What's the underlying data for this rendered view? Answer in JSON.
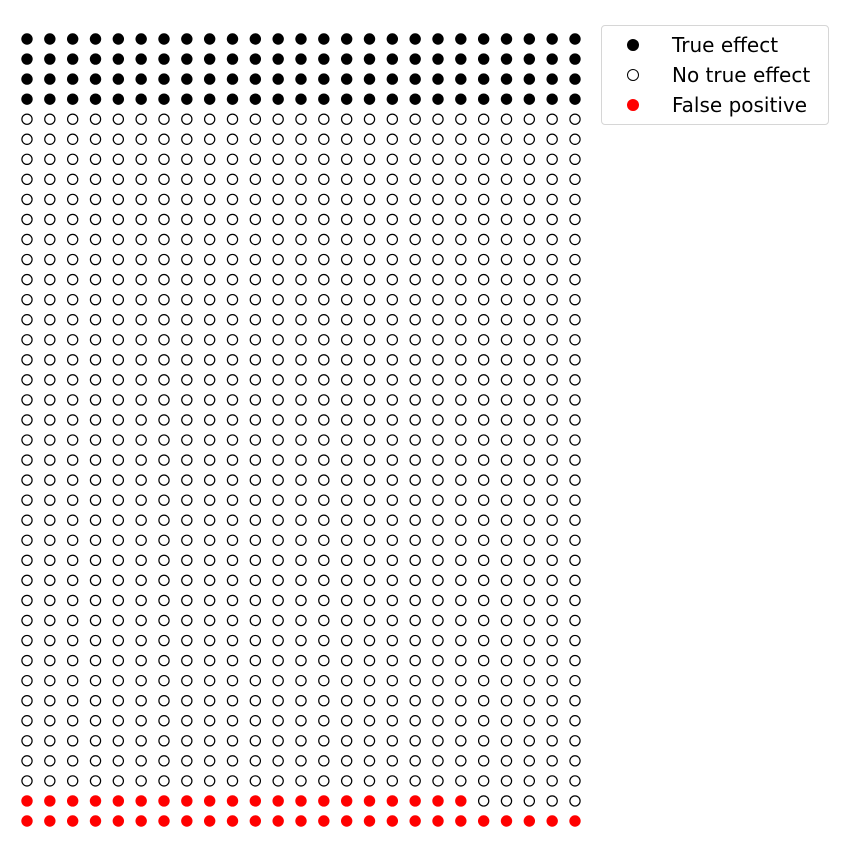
{
  "chart_data": {
    "type": "scatter",
    "subtype": "dot-grid",
    "columns": 25,
    "rows": 40,
    "total": 1000,
    "axes_visible": false,
    "grid": false,
    "legend_position": "top-right",
    "categories": [
      {
        "key": "true_effect",
        "name": "True effect",
        "color": "#000000",
        "filled": true,
        "count": 100
      },
      {
        "key": "no_true_effect",
        "name": "No true effect",
        "color": "#000000",
        "filled": false,
        "count": 855
      },
      {
        "key": "false_positive",
        "name": "False positive",
        "color": "#ff0000",
        "filled": true,
        "count": 45
      }
    ],
    "row_groups": [
      {
        "category": "true_effect",
        "rows": [
          0,
          1,
          2,
          3
        ]
      },
      {
        "category": "no_true_effect",
        "rows": "4-37"
      },
      {
        "category": "false_positive",
        "rows": [
          38
        ],
        "columns": "0-19"
      },
      {
        "category": "no_true_effect",
        "rows": [
          38
        ],
        "columns": "20-24"
      },
      {
        "category": "false_positive",
        "rows": [
          39
        ]
      }
    ]
  },
  "legend": {
    "items": [
      {
        "label": "True effect",
        "color": "#000000",
        "filled": true
      },
      {
        "label": "No true effect",
        "color": "#000000",
        "filled": false
      },
      {
        "label": "False positive",
        "color": "#ff0000",
        "filled": true
      }
    ]
  }
}
